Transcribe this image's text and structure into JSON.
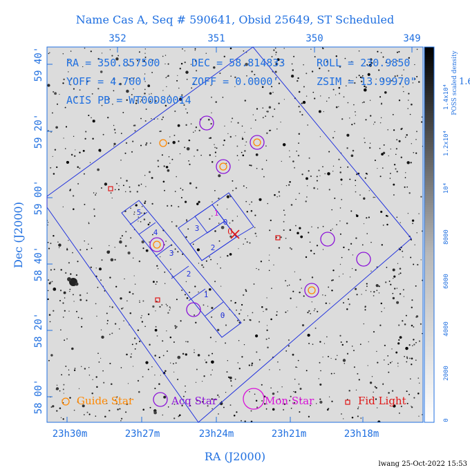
{
  "title": "Name Cas A, Seq # 590641, Obsid 25649, ST Scheduled",
  "info": {
    "ra": "RA = 350.857500",
    "dec": "DEC = 58.814833",
    "roll": "ROLL = 230.9850",
    "yoff": "YOFF = 4.700'",
    "zoff": "ZOFF = 0.0000'",
    "zsim": "ZSIM = 13.99970\"",
    "acis": "ACIS PB = WT00D80014"
  },
  "axes": {
    "top_ticks": [
      "352",
      "351",
      "350",
      "349"
    ],
    "bottom_ticks": [
      "23h30m",
      "23h27m",
      "23h24m",
      "23h21m",
      "23h18m"
    ],
    "left_ticks": [
      "59 40'",
      "59 20'",
      "59 00'",
      "58 40'",
      "58 20'",
      "58 00'"
    ],
    "xlabel": "RA (J2000)",
    "ylabel": "Dec (J2000)"
  },
  "colorbar": {
    "ticks": [
      "0",
      "2000",
      "4000",
      "6000",
      "8000",
      "10⁴",
      "1.2x10⁴",
      "1.4x10⁴"
    ],
    "label": "POSS scaled density",
    "overflow_text": "1.6"
  },
  "chips": {
    "i_array": [
      "0",
      "1",
      "2",
      "3"
    ],
    "s_array": [
      "5",
      "4",
      "3",
      "2",
      "1",
      "0"
    ]
  },
  "aimpoint_label": "0",
  "legend": {
    "guide": "Guide Star",
    "acq": "Acq Star",
    "mon": "Mon Star",
    "fid": "Fid Light"
  },
  "colors": {
    "axis_blue": "#1f6fe0",
    "chip_blue": "#2233dd",
    "guide": "#ff8800",
    "acq": "#8a10d8",
    "mon": "#d810d8",
    "fid": "#e01515"
  },
  "footer": "lwang 25-Oct-2022 15:53"
}
